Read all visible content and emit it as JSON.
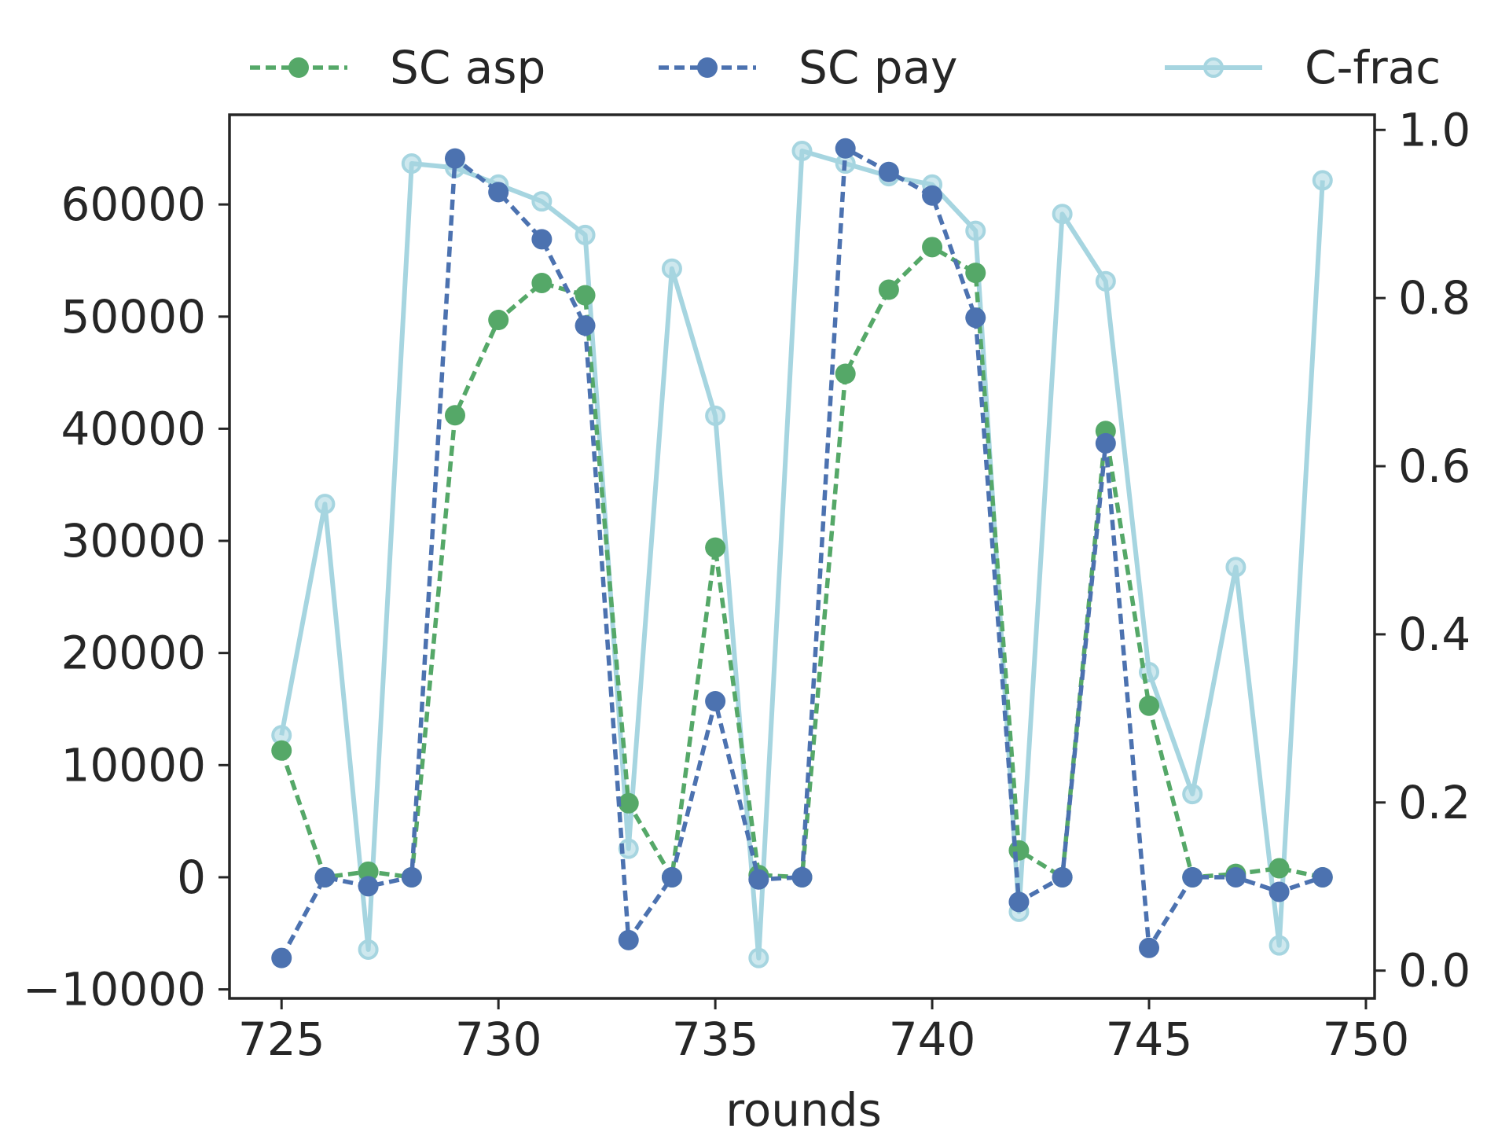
{
  "chart_data": {
    "type": "line",
    "xlabel": "rounds",
    "ylabel": "",
    "y2label": "",
    "xlim": [
      723.8,
      750.2
    ],
    "ylim": [
      -10800,
      68000
    ],
    "y2lim": [
      -0.033,
      1.018
    ],
    "xticks": [
      725,
      730,
      735,
      740,
      745,
      750
    ],
    "yticks": [
      -10000,
      0,
      10000,
      20000,
      30000,
      40000,
      50000,
      60000
    ],
    "y2ticks": [
      0.0,
      0.2,
      0.4,
      0.6,
      0.8,
      1.0
    ],
    "grid": false,
    "legend_position": "top-outside",
    "x": [
      725,
      726,
      727,
      728,
      729,
      730,
      731,
      732,
      733,
      734,
      735,
      736,
      737,
      738,
      739,
      740,
      741,
      742,
      743,
      744,
      745,
      746,
      747,
      748,
      749
    ],
    "series": [
      {
        "name": "SC asp",
        "axis": "left",
        "color": "#55a868",
        "style": "dashed",
        "marker": "filled",
        "values": [
          11300,
          0,
          500,
          0,
          41200,
          49700,
          53000,
          51900,
          6600,
          0,
          29400,
          200,
          0,
          44900,
          52400,
          56200,
          53900,
          2400,
          0,
          39800,
          15300,
          0,
          300,
          800,
          0
        ]
      },
      {
        "name": "SC pay",
        "axis": "left",
        "color": "#4c72b0",
        "style": "dashed",
        "marker": "filled",
        "values": [
          -7200,
          0,
          -800,
          0,
          64100,
          61100,
          56900,
          49200,
          -5600,
          0,
          15700,
          -200,
          0,
          65000,
          62900,
          60800,
          49900,
          -2200,
          0,
          38700,
          -6300,
          0,
          0,
          -1300,
          0
        ]
      },
      {
        "name": "C-frac",
        "axis": "right",
        "color": "#a6d5e0",
        "style": "solid",
        "marker": "hollow",
        "values": [
          0.28,
          0.555,
          0.025,
          0.96,
          0.955,
          0.935,
          0.915,
          0.875,
          0.145,
          0.835,
          0.66,
          0.015,
          0.975,
          0.96,
          0.945,
          0.935,
          0.88,
          0.07,
          0.9,
          0.82,
          0.355,
          0.21,
          0.48,
          0.03,
          0.94
        ]
      }
    ]
  }
}
